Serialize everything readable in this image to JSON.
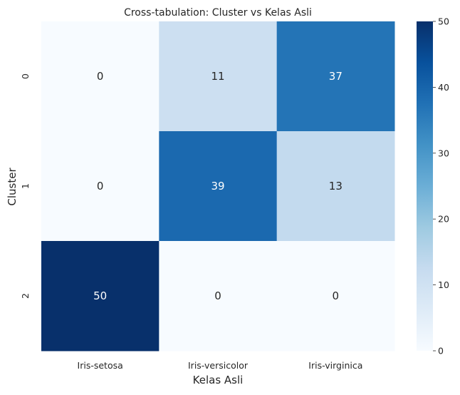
{
  "chart_data": {
    "type": "heatmap",
    "title": "Cross-tabulation: Cluster vs Kelas Asli",
    "xlabel": "Kelas Asli",
    "ylabel": "Cluster",
    "x_categories": [
      "Iris-setosa",
      "Iris-versicolor",
      "Iris-virginica"
    ],
    "y_categories": [
      "0",
      "1",
      "2"
    ],
    "values": [
      [
        0,
        11,
        37
      ],
      [
        0,
        39,
        13
      ],
      [
        50,
        0,
        0
      ]
    ],
    "colorbar": {
      "min": 0,
      "max": 50,
      "ticks": [
        "0",
        "10",
        "20",
        "30",
        "40",
        "50"
      ]
    },
    "colormap": [
      "#f7fbff",
      "#deebf7",
      "#c6dbef",
      "#9ecae1",
      "#6baed6",
      "#4292c6",
      "#2171b5",
      "#08519c",
      "#08306b"
    ],
    "annotations": true,
    "grid": false
  }
}
